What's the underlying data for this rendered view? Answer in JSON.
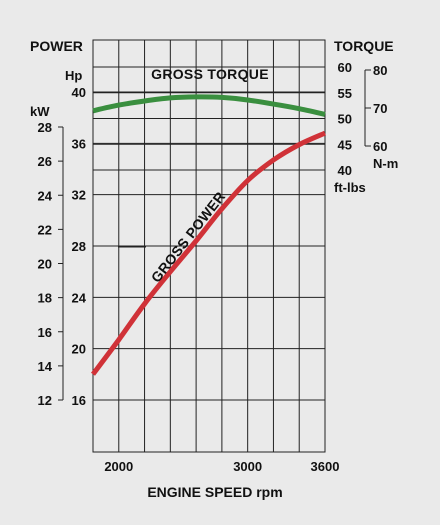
{
  "colors": {
    "background": "#eaeaea",
    "grid": "#222222",
    "torque_curve": "#3a8f3f",
    "power_curve": "#d03238"
  },
  "chart_data": {
    "type": "line",
    "xlabel": "ENGINE SPEED rpm",
    "x_ticks": [
      "2000",
      "3000",
      "3600"
    ],
    "xlim": [
      1800,
      3600
    ],
    "left_header": "POWER",
    "right_header": "TORQUE",
    "hp_axis": {
      "unit": "Hp",
      "ticks": [
        "16",
        "20",
        "24",
        "28",
        "32",
        "36",
        "40"
      ],
      "range": [
        16,
        40
      ]
    },
    "kw_axis": {
      "unit": "kW",
      "ticks": [
        "12",
        "14",
        "16",
        "18",
        "20",
        "22",
        "24",
        "26",
        "28"
      ],
      "range": [
        12,
        28
      ]
    },
    "ftlbs_axis": {
      "unit": "ft-lbs",
      "ticks": [
        "40",
        "45",
        "50",
        "55",
        "60"
      ],
      "range": [
        40,
        60
      ]
    },
    "nm_axis": {
      "unit": "N-m",
      "ticks": [
        "60",
        "70",
        "80"
      ],
      "range": [
        60,
        80
      ]
    },
    "series": [
      {
        "name": "GROSS TORQUE",
        "axis": "ftlbs",
        "x": [
          1800,
          2000,
          2200,
          2400,
          2600,
          2800,
          3000,
          3200,
          3400,
          3600
        ],
        "y": [
          51.5,
          52.6,
          53.4,
          54.0,
          54.2,
          54.1,
          53.6,
          52.8,
          51.9,
          50.8
        ]
      },
      {
        "name": "GROSS POWER",
        "axis": "hp",
        "x": [
          1800,
          2000,
          2200,
          2400,
          2600,
          2800,
          3000,
          3200,
          3400,
          3600
        ],
        "y": [
          18.0,
          20.7,
          23.5,
          26.0,
          28.4,
          30.9,
          33.1,
          34.7,
          35.9,
          36.8
        ]
      }
    ]
  }
}
